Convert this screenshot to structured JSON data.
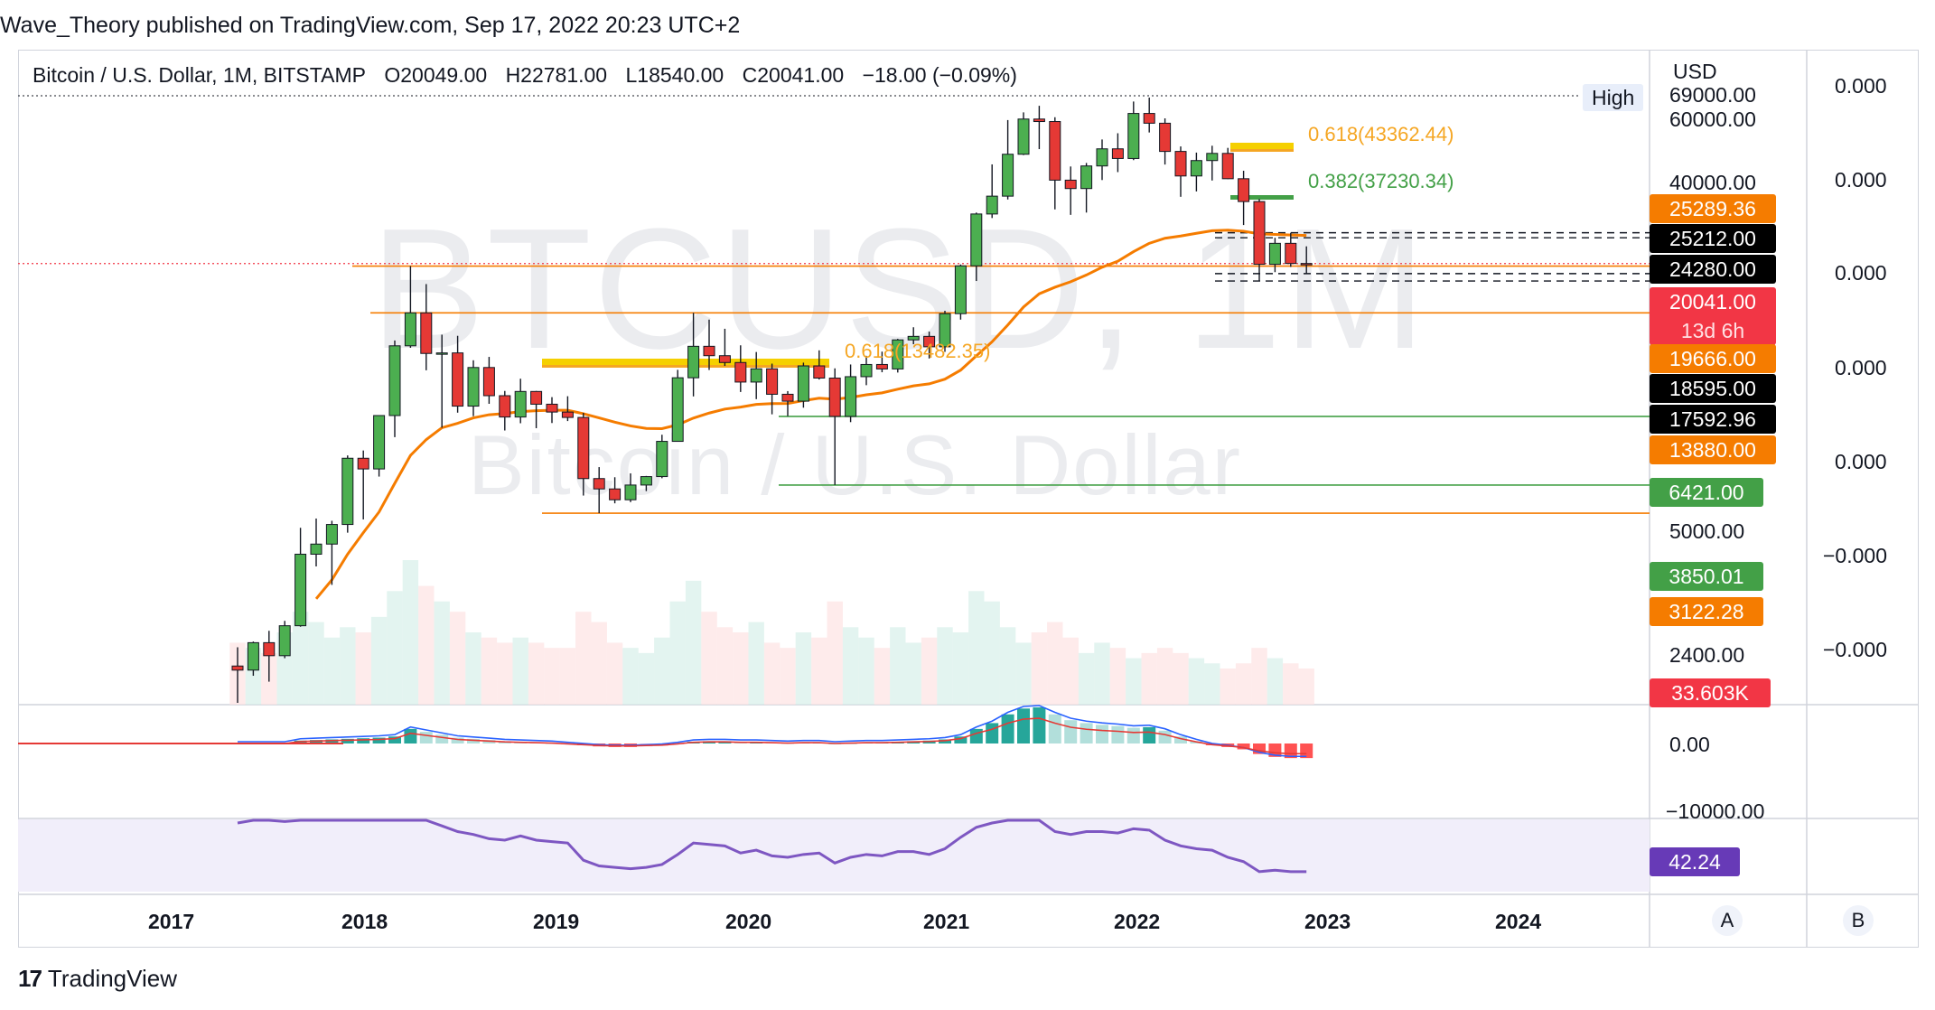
{
  "publisher": "Wave_Theory published on TradingView.com, Sep 17, 2022 20:23 UTC+2",
  "header": {
    "symbol": "Bitcoin / U.S. Dollar, 1M, BITSTAMP",
    "open": "O20049.00",
    "high": "H22781.00",
    "low": "L18540.00",
    "close": "C20041.00",
    "change": "−18.00 (−0.09%)"
  },
  "watermark": {
    "symbol": "BTCUSD, 1M",
    "description": "Bitcoin / U.S. Dollar"
  },
  "currency": "USD",
  "high_label": "High",
  "price_axis_ticks": [
    "69000.00",
    "60000.00",
    "40000.00",
    "5000.00",
    "2400.00",
    "0.00",
    "−10000.00"
  ],
  "right_axis_ticks": [
    "0.000",
    "0.000",
    "0.000",
    "0.000",
    "0.000",
    "−0.000",
    "−0.000"
  ],
  "price_tags": [
    {
      "label": "25289.36",
      "bg": "#f57c00",
      "fg": "#ffffff"
    },
    {
      "label": "25212.00",
      "bg": "#000000",
      "fg": "#ffffff"
    },
    {
      "label": "24280.00",
      "bg": "#000000",
      "fg": "#ffffff"
    },
    {
      "label": "20041.00",
      "bg": "#f23645",
      "fg": "#ffffff"
    },
    {
      "label": "13d 6h",
      "bg": "#f23645",
      "fg": "#ffe0e3"
    },
    {
      "label": "19666.00",
      "bg": "#f57c00",
      "fg": "#ffffff"
    },
    {
      "label": "18595.00",
      "bg": "#000000",
      "fg": "#ffffff"
    },
    {
      "label": "17592.96",
      "bg": "#000000",
      "fg": "#ffffff"
    },
    {
      "label": "13880.00",
      "bg": "#f57c00",
      "fg": "#ffffff"
    },
    {
      "label": "6421.00",
      "bg": "#43a047",
      "fg": "#ffffff"
    },
    {
      "label": "3850.01",
      "bg": "#43a047",
      "fg": "#ffffff"
    },
    {
      "label": "3122.28",
      "bg": "#f57c00",
      "fg": "#ffffff"
    },
    {
      "label": "33.603K",
      "bg": "#f23645",
      "fg": "#ffffff"
    },
    {
      "label": "42.24",
      "bg": "#673ab7",
      "fg": "#ffffff"
    }
  ],
  "fib_labels": [
    {
      "text": "0.618(43362.44)",
      "color": "#f5a623"
    },
    {
      "text": "0.382(37230.34)",
      "color": "#43a047"
    },
    {
      "text": "0.618(13482.35)",
      "color": "#f5a623"
    }
  ],
  "time_axis": [
    "2017",
    "2018",
    "2019",
    "2020",
    "2021",
    "2022",
    "2023",
    "2024"
  ],
  "buttons": {
    "a": "A",
    "b": "B"
  },
  "footer": {
    "brand_mark": "17",
    "brand": "TradingView"
  },
  "colors": {
    "up": "#26a69a",
    "down": "#ef5350",
    "candle_up": "#4caf50",
    "candle_down": "#e53935",
    "ema": "#f57c00",
    "rsi": "#7e57c2"
  },
  "chart_data": {
    "type": "candlestick",
    "interval": "1M",
    "exchange": "BITSTAMP",
    "y_scale": "log",
    "last_close": 20041,
    "horizontal_levels": [
      25289.36,
      25212.0,
      24280.0,
      19666.0,
      18595.0,
      17592.96,
      13880.0,
      6421.0,
      3850.01,
      3122.28
    ],
    "candles": [
      {
        "d": "2017-01",
        "o": 1000,
        "h": 1150,
        "l": 760,
        "c": 970
      },
      {
        "d": "2017-02",
        "o": 970,
        "h": 1200,
        "l": 930,
        "c": 1190
      },
      {
        "d": "2017-03",
        "o": 1190,
        "h": 1300,
        "l": 890,
        "c": 1080
      },
      {
        "d": "2017-04",
        "o": 1080,
        "h": 1400,
        "l": 1060,
        "c": 1350
      },
      {
        "d": "2017-05",
        "o": 1350,
        "h": 2800,
        "l": 1340,
        "c": 2300
      },
      {
        "d": "2017-06",
        "o": 2300,
        "h": 3000,
        "l": 2100,
        "c": 2480
      },
      {
        "d": "2017-07",
        "o": 2480,
        "h": 2950,
        "l": 1830,
        "c": 2870
      },
      {
        "d": "2017-08",
        "o": 2870,
        "h": 4800,
        "l": 2700,
        "c": 4700
      },
      {
        "d": "2017-09",
        "o": 4700,
        "h": 4980,
        "l": 2980,
        "c": 4340
      },
      {
        "d": "2017-10",
        "o": 4340,
        "h": 6470,
        "l": 4100,
        "c": 6460
      },
      {
        "d": "2017-11",
        "o": 6460,
        "h": 11300,
        "l": 5500,
        "c": 10860
      },
      {
        "d": "2017-12",
        "o": 10860,
        "h": 19666,
        "l": 10700,
        "c": 13880
      },
      {
        "d": "2018-01",
        "o": 13880,
        "h": 17200,
        "l": 9050,
        "c": 10260
      },
      {
        "d": "2018-02",
        "o": 10260,
        "h": 11800,
        "l": 5900,
        "c": 10300
      },
      {
        "d": "2018-03",
        "o": 10300,
        "h": 11700,
        "l": 6600,
        "c": 6930
      },
      {
        "d": "2018-04",
        "o": 6930,
        "h": 9750,
        "l": 6430,
        "c": 9240
      },
      {
        "d": "2018-05",
        "o": 9240,
        "h": 10000,
        "l": 7050,
        "c": 7490
      },
      {
        "d": "2018-06",
        "o": 7490,
        "h": 7760,
        "l": 5780,
        "c": 6390
      },
      {
        "d": "2018-07",
        "o": 6390,
        "h": 8500,
        "l": 6100,
        "c": 7730
      },
      {
        "d": "2018-08",
        "o": 7730,
        "h": 7760,
        "l": 5880,
        "c": 7030
      },
      {
        "d": "2018-09",
        "o": 7030,
        "h": 7410,
        "l": 6110,
        "c": 6630
      },
      {
        "d": "2018-10",
        "o": 6630,
        "h": 7460,
        "l": 6200,
        "c": 6370
      },
      {
        "d": "2018-11",
        "o": 6370,
        "h": 6590,
        "l": 3560,
        "c": 4040
      },
      {
        "d": "2018-12",
        "o": 4040,
        "h": 4400,
        "l": 3122.28,
        "c": 3740
      },
      {
        "d": "2019-01",
        "o": 3740,
        "h": 4080,
        "l": 3360,
        "c": 3450
      },
      {
        "d": "2019-02",
        "o": 3450,
        "h": 4200,
        "l": 3390,
        "c": 3850
      },
      {
        "d": "2019-03",
        "o": 3850,
        "h": 4120,
        "l": 3680,
        "c": 4100
      },
      {
        "d": "2019-04",
        "o": 4100,
        "h": 5600,
        "l": 4050,
        "c": 5330
      },
      {
        "d": "2019-05",
        "o": 5330,
        "h": 9080,
        "l": 5330,
        "c": 8560
      },
      {
        "d": "2019-06",
        "o": 8560,
        "h": 13880,
        "l": 7450,
        "c": 10820
      },
      {
        "d": "2019-07",
        "o": 10820,
        "h": 13200,
        "l": 9070,
        "c": 10090
      },
      {
        "d": "2019-08",
        "o": 10090,
        "h": 12330,
        "l": 9350,
        "c": 9590
      },
      {
        "d": "2019-09",
        "o": 9590,
        "h": 10900,
        "l": 7700,
        "c": 8290
      },
      {
        "d": "2019-10",
        "o": 8290,
        "h": 10370,
        "l": 7300,
        "c": 9150
      },
      {
        "d": "2019-11",
        "o": 9150,
        "h": 9510,
        "l": 6520,
        "c": 7570
      },
      {
        "d": "2019-12",
        "o": 7570,
        "h": 7750,
        "l": 6430,
        "c": 7190
      },
      {
        "d": "2020-01",
        "o": 7190,
        "h": 9580,
        "l": 6850,
        "c": 9350
      },
      {
        "d": "2020-02",
        "o": 9350,
        "h": 10500,
        "l": 8450,
        "c": 8540
      },
      {
        "d": "2020-03",
        "o": 8540,
        "h": 9180,
        "l": 3850.01,
        "c": 6420
      },
      {
        "d": "2020-04",
        "o": 6420,
        "h": 9450,
        "l": 6150,
        "c": 8630
      },
      {
        "d": "2020-05",
        "o": 8630,
        "h": 10080,
        "l": 8100,
        "c": 9450
      },
      {
        "d": "2020-06",
        "o": 9450,
        "h": 10400,
        "l": 8920,
        "c": 9140
      },
      {
        "d": "2020-07",
        "o": 9140,
        "h": 11440,
        "l": 8900,
        "c": 11350
      },
      {
        "d": "2020-08",
        "o": 11350,
        "h": 12470,
        "l": 10990,
        "c": 11650
      },
      {
        "d": "2020-09",
        "o": 11650,
        "h": 12070,
        "l": 9880,
        "c": 10780
      },
      {
        "d": "2020-10",
        "o": 10780,
        "h": 14100,
        "l": 10380,
        "c": 13800
      },
      {
        "d": "2020-11",
        "o": 13800,
        "h": 19900,
        "l": 13200,
        "c": 19700
      },
      {
        "d": "2020-12",
        "o": 19700,
        "h": 29300,
        "l": 17600,
        "c": 28990
      },
      {
        "d": "2021-01",
        "o": 28990,
        "h": 41950,
        "l": 28130,
        "c": 33110
      },
      {
        "d": "2021-02",
        "o": 33110,
        "h": 58350,
        "l": 32300,
        "c": 45240
      },
      {
        "d": "2021-03",
        "o": 45240,
        "h": 61800,
        "l": 44960,
        "c": 58800
      },
      {
        "d": "2021-04",
        "o": 58800,
        "h": 64900,
        "l": 47000,
        "c": 57720
      },
      {
        "d": "2021-05",
        "o": 57720,
        "h": 59600,
        "l": 30000,
        "c": 37300
      },
      {
        "d": "2021-06",
        "o": 37300,
        "h": 41300,
        "l": 28800,
        "c": 35040
      },
      {
        "d": "2021-07",
        "o": 35040,
        "h": 42400,
        "l": 29300,
        "c": 41460
      },
      {
        "d": "2021-08",
        "o": 41460,
        "h": 50500,
        "l": 37330,
        "c": 47100
      },
      {
        "d": "2021-09",
        "o": 47100,
        "h": 52900,
        "l": 39600,
        "c": 43830
      },
      {
        "d": "2021-10",
        "o": 43830,
        "h": 67000,
        "l": 43300,
        "c": 61300
      },
      {
        "d": "2021-11",
        "o": 61300,
        "h": 69000,
        "l": 53200,
        "c": 57000
      },
      {
        "d": "2021-12",
        "o": 57000,
        "h": 59100,
        "l": 41900,
        "c": 46200
      },
      {
        "d": "2022-01",
        "o": 46200,
        "h": 47950,
        "l": 32950,
        "c": 38480
      },
      {
        "d": "2022-02",
        "o": 38480,
        "h": 45800,
        "l": 34300,
        "c": 43160
      },
      {
        "d": "2022-03",
        "o": 43160,
        "h": 48200,
        "l": 37200,
        "c": 45530
      },
      {
        "d": "2022-04",
        "o": 45530,
        "h": 47440,
        "l": 37600,
        "c": 37700
      },
      {
        "d": "2022-05",
        "o": 37700,
        "h": 40000,
        "l": 26700,
        "c": 31800
      },
      {
        "d": "2022-06",
        "o": 31800,
        "h": 32400,
        "l": 17592.96,
        "c": 19930
      },
      {
        "d": "2022-07",
        "o": 19930,
        "h": 24280,
        "l": 18800,
        "c": 23300
      },
      {
        "d": "2022-08",
        "o": 23300,
        "h": 25212,
        "l": 19550,
        "c": 20049
      },
      {
        "d": "2022-09",
        "o": 20049,
        "h": 22781,
        "l": 18540,
        "c": 20041
      }
    ],
    "ema": [
      800,
      900,
      1000,
      1150,
      1400,
      1650,
      1900,
      2300,
      2700,
      3150,
      3900,
      4800,
      5400,
      5900,
      6100,
      6350,
      6500,
      6560,
      6650,
      6700,
      6720,
      6720,
      6550,
      6350,
      6150,
      5980,
      5870,
      5860,
      6030,
      6340,
      6580,
      6780,
      6880,
      7020,
      7060,
      7070,
      7220,
      7350,
      7300,
      7390,
      7540,
      7650,
      7860,
      8060,
      8180,
      8470,
      9060,
      10080,
      11190,
      12680,
      14500,
      16000,
      16800,
      17500,
      18400,
      19500,
      20400,
      21900,
      23300,
      24200,
      24600,
      25100,
      25600,
      25700,
      25500,
      25000,
      24900,
      24800,
      24700
    ],
    "macd_hist": [
      0,
      0,
      0,
      0,
      0.5,
      0.6,
      0.7,
      0.8,
      0.9,
      1,
      1.2,
      2.5,
      2,
      1.5,
      1,
      0.8,
      0.6,
      0.4,
      0.3,
      0.2,
      0.1,
      -0.1,
      -0.3,
      -0.5,
      -0.6,
      -0.6,
      -0.5,
      -0.4,
      -0.1,
      0.3,
      0.4,
      0.4,
      0.3,
      0.3,
      0.2,
      0.1,
      0.2,
      0.2,
      0,
      0.1,
      0.2,
      0.2,
      0.3,
      0.4,
      0.5,
      0.7,
      1.2,
      2.5,
      3.5,
      5,
      6,
      6.2,
      5,
      4,
      3.5,
      3.2,
      3,
      2.7,
      2.8,
      2.2,
      1.2,
      0.4,
      -0.3,
      -0.6,
      -1,
      -1.8,
      -2.3,
      -2.5,
      -2.5
    ],
    "rsi": [
      78,
      80,
      82,
      79,
      83,
      85,
      84,
      86,
      82,
      85,
      88,
      90,
      80,
      76,
      72,
      70,
      67,
      66,
      69,
      66,
      65,
      64,
      52,
      48,
      47,
      46,
      47,
      49,
      56,
      64,
      63,
      62,
      57,
      59,
      55,
      54,
      56,
      57,
      50,
      54,
      56,
      55,
      58,
      58,
      56,
      60,
      68,
      75,
      78,
      80,
      82,
      82,
      72,
      70,
      72,
      72,
      71,
      74,
      73,
      66,
      62,
      60,
      59,
      54,
      51,
      44,
      45,
      44,
      44
    ],
    "volume": [
      12,
      11,
      10,
      14,
      18,
      16,
      13,
      15,
      14,
      17,
      22,
      28,
      23,
      20,
      18,
      14,
      13,
      12,
      13,
      12,
      11,
      11,
      18,
      16,
      12,
      11,
      10,
      13,
      20,
      24,
      18,
      15,
      14,
      16,
      12,
      11,
      14,
      13,
      20,
      15,
      13,
      11,
      15,
      12,
      13,
      15,
      14,
      22,
      20,
      15,
      12,
      14,
      16,
      13,
      10,
      12,
      11,
      9,
      10,
      11,
      10,
      9,
      8,
      7,
      8,
      11,
      9,
      8,
      7
    ]
  }
}
